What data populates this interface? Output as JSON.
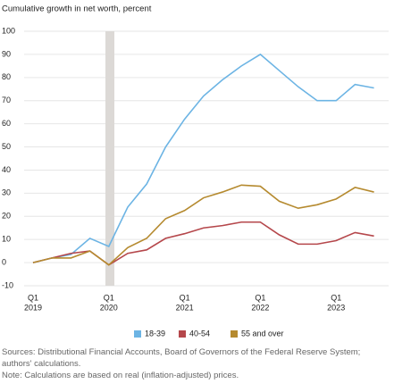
{
  "chart_data": {
    "type": "line",
    "title": "Cumulative growth in net worth, percent",
    "categories": [
      "Q1",
      null,
      null,
      null,
      "Q1",
      null,
      null,
      null,
      "Q1",
      null,
      null,
      null,
      "Q1",
      null,
      null,
      null,
      "Q1",
      null,
      null
    ],
    "category_years": [
      "2019",
      null,
      null,
      null,
      "2020",
      null,
      null,
      null,
      "2021",
      null,
      null,
      null,
      "2022",
      null,
      null,
      null,
      "2023",
      null,
      null
    ],
    "series": [
      {
        "name": "18-39",
        "color": "#6cb4e4",
        "values": [
          0,
          2,
          3.5,
          10.5,
          7,
          24,
          34,
          50,
          62,
          72,
          79,
          85,
          90,
          83,
          76,
          70,
          70,
          77,
          75.5
        ]
      },
      {
        "name": "40-54",
        "color": "#b5474b",
        "values": [
          0,
          2,
          4,
          5,
          -1,
          4,
          5.5,
          10.5,
          12.5,
          15,
          16,
          17.5,
          17.5,
          12,
          8,
          8,
          9.5,
          13,
          11.5
        ]
      },
      {
        "name": "55 and over",
        "color": "#b58a2f",
        "values": [
          0,
          2,
          2,
          5,
          -1,
          6.5,
          10.5,
          19,
          22.5,
          28,
          30.5,
          33.5,
          33,
          26.5,
          23.5,
          25,
          27.5,
          32.5,
          30.5
        ]
      }
    ],
    "ylim": [
      -10,
      100
    ],
    "yticks": [
      -10,
      0,
      10,
      20,
      30,
      40,
      50,
      60,
      70,
      80,
      90,
      100
    ],
    "grid": true,
    "legend": "bottom",
    "sources": "Sources: Distributional Financial Accounts, Board of Governors of the Federal Reserve System; authors' calculations.",
    "note": "Note: Calculations are based on real (inflation-adjusted) prices."
  }
}
